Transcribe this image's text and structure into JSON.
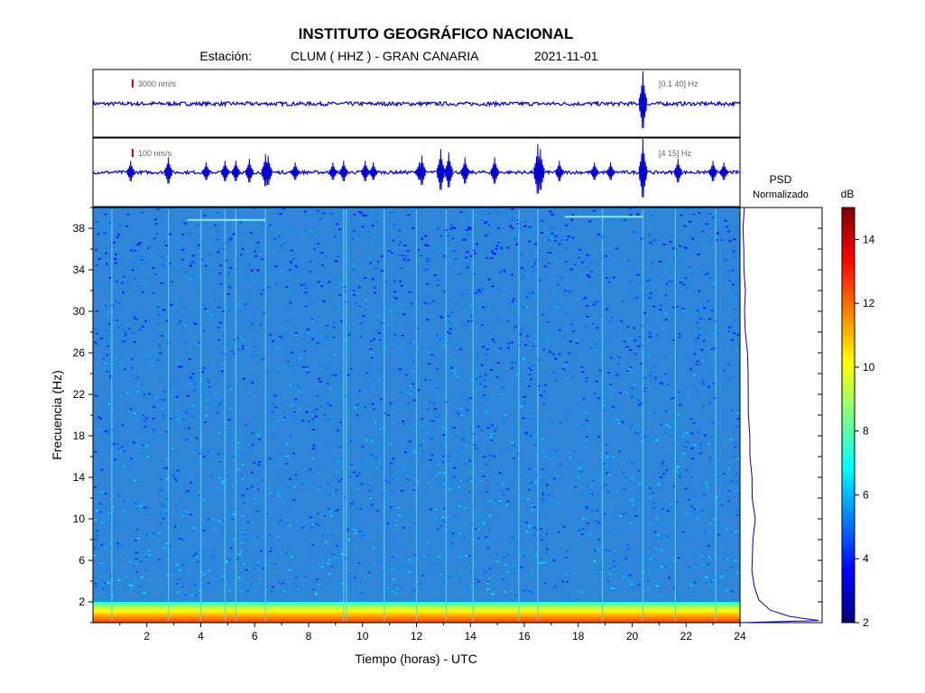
{
  "header": {
    "title": "INSTITUTO GEOGRÁFICO NACIONAL",
    "station_label": "Estación:",
    "station": "CLUM ( HHZ ) - GRAN CANARIA",
    "date": "2021-11-01"
  },
  "chart_data": [
    {
      "type": "line",
      "panel": "seismogram-broadband",
      "scale_label": "3000 nm/s",
      "filter_label": "[0.1 40] Hz",
      "x": {
        "label": "Tiempo (horas) - UTC",
        "range": [
          0,
          24
        ]
      },
      "events": [
        {
          "t": 20.4,
          "amplitude": 1.0
        }
      ],
      "noise_level": 0.06
    },
    {
      "type": "line",
      "panel": "seismogram-filtered",
      "scale_label": "100 nm/s",
      "filter_label": "[4 15] Hz",
      "x": {
        "range": [
          0,
          24
        ]
      },
      "events": [
        {
          "t": 1.4,
          "amplitude": 0.35
        },
        {
          "t": 2.8,
          "amplitude": 0.45
        },
        {
          "t": 4.2,
          "amplitude": 0.3
        },
        {
          "t": 4.9,
          "amplitude": 0.35
        },
        {
          "t": 5.3,
          "amplitude": 0.35
        },
        {
          "t": 5.8,
          "amplitude": 0.4
        },
        {
          "t": 6.4,
          "amplitude": 0.55
        },
        {
          "t": 6.5,
          "amplitude": 0.5
        },
        {
          "t": 7.5,
          "amplitude": 0.3
        },
        {
          "t": 8.9,
          "amplitude": 0.3
        },
        {
          "t": 9.3,
          "amplitude": 0.35
        },
        {
          "t": 10.1,
          "amplitude": 0.35
        },
        {
          "t": 10.4,
          "amplitude": 0.3
        },
        {
          "t": 12.1,
          "amplitude": 0.3
        },
        {
          "t": 12.2,
          "amplitude": 0.5
        },
        {
          "t": 12.9,
          "amplitude": 0.7
        },
        {
          "t": 13.2,
          "amplitude": 0.6
        },
        {
          "t": 13.8,
          "amplitude": 0.45
        },
        {
          "t": 14.9,
          "amplitude": 0.45
        },
        {
          "t": 16.5,
          "amplitude": 0.85
        },
        {
          "t": 16.6,
          "amplitude": 0.7
        },
        {
          "t": 17.3,
          "amplitude": 0.35
        },
        {
          "t": 18.6,
          "amplitude": 0.3
        },
        {
          "t": 19.2,
          "amplitude": 0.3
        },
        {
          "t": 20.4,
          "amplitude": 1.0
        },
        {
          "t": 21.7,
          "amplitude": 0.4
        },
        {
          "t": 23.0,
          "amplitude": 0.35
        },
        {
          "t": 23.4,
          "amplitude": 0.3
        }
      ]
    },
    {
      "type": "heatmap",
      "panel": "spectrogram",
      "x": {
        "label": "Tiempo (horas) - UTC",
        "range": [
          0,
          24
        ],
        "ticks": [
          2,
          4,
          6,
          8,
          10,
          12,
          14,
          16,
          18,
          20,
          22,
          24
        ]
      },
      "y": {
        "label": "Frecuencia  (Hz)",
        "range": [
          0,
          40
        ],
        "ticks": [
          2,
          6,
          10,
          14,
          18,
          22,
          26,
          30,
          34,
          38
        ]
      },
      "colorbar": {
        "label": "dB",
        "range": [
          2,
          15
        ],
        "ticks": [
          2,
          4,
          6,
          8,
          10,
          12,
          14
        ]
      },
      "background_level_db": 5.6,
      "low_freq_band": {
        "to_hz": 2.0,
        "peak_db": 12.5
      },
      "vertical_streaks_hours": [
        0.7,
        2.8,
        4.0,
        4.9,
        5.3,
        6.4,
        9.3,
        9.4,
        10.8,
        12.0,
        13.1,
        14.1,
        15.8,
        16.5,
        18.9,
        20.4,
        21.6,
        23.1
      ],
      "horizontal_lines": [
        {
          "freq_hz": 38.8,
          "from_h": 3.5,
          "to_h": 6.4
        },
        {
          "freq_hz": 39.1,
          "from_h": 17.5,
          "to_h": 20.4
        }
      ]
    },
    {
      "type": "line",
      "panel": "psd",
      "title": "PSD",
      "subtitle": "Normalizado",
      "points": [
        [
          0.0,
          0.0
        ],
        [
          0.99,
          0.2
        ],
        [
          0.6,
          0.6
        ],
        [
          0.35,
          1.2
        ],
        [
          0.2,
          2.2
        ],
        [
          0.14,
          3.5
        ],
        [
          0.12,
          5.0
        ],
        [
          0.12,
          6.5
        ],
        [
          0.13,
          8.0
        ],
        [
          0.15,
          10.0
        ],
        [
          0.13,
          12.0
        ],
        [
          0.12,
          14.0
        ],
        [
          0.1,
          16.0
        ],
        [
          0.09,
          18.0
        ],
        [
          0.08,
          20.0
        ],
        [
          0.07,
          22.0
        ],
        [
          0.06,
          24.0
        ],
        [
          0.05,
          26.0
        ],
        [
          0.04,
          28.0
        ],
        [
          0.03,
          30.0
        ],
        [
          0.03,
          32.0
        ],
        [
          0.02,
          34.0
        ],
        [
          0.02,
          36.0
        ],
        [
          0.01,
          38.0
        ],
        [
          0.01,
          40.0
        ]
      ]
    }
  ]
}
